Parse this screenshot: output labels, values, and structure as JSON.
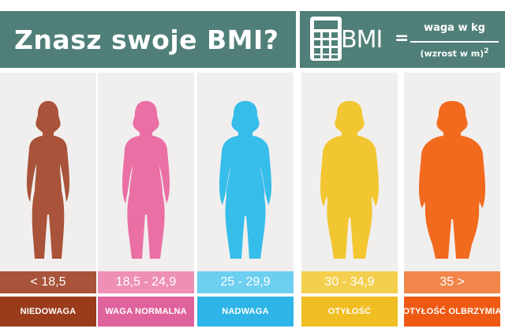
{
  "header": {
    "title": "Znasz swoje BMI?",
    "bmi_label": "BMI",
    "equals": "=",
    "numerator": "waga w kg",
    "denominator": "(wzrost w m)",
    "exponent": "2",
    "background": "#4f7f78"
  },
  "categories": [
    {
      "range": "< 18,5",
      "label": "NIEDOWAGA",
      "body_color": "#a8533a",
      "range_color": "#a8533a",
      "label_color": "#9a3b1c"
    },
    {
      "range": "18,5 - 24,9",
      "label": "WAGA NORMALNA",
      "body_color": "#ea6fa4",
      "range_color": "#ee8fb6",
      "label_color": "#e0629c"
    },
    {
      "range": "25 - 29,9",
      "label": "NADWAGA",
      "body_color": "#36bdea",
      "range_color": "#6ccff0",
      "label_color": "#2eb4e6"
    },
    {
      "range": "30 - 34,9",
      "label": "OTYŁOŚĆ",
      "body_color": "#f2c630",
      "range_color": "#f4cf4e",
      "label_color": "#f0bd22"
    },
    {
      "range": "35 >",
      "label": "OTYŁOŚĆ OLBRZYMIA",
      "body_color": "#f26a1e",
      "range_color": "#f2864a",
      "label_color": "#ee5a14"
    }
  ]
}
